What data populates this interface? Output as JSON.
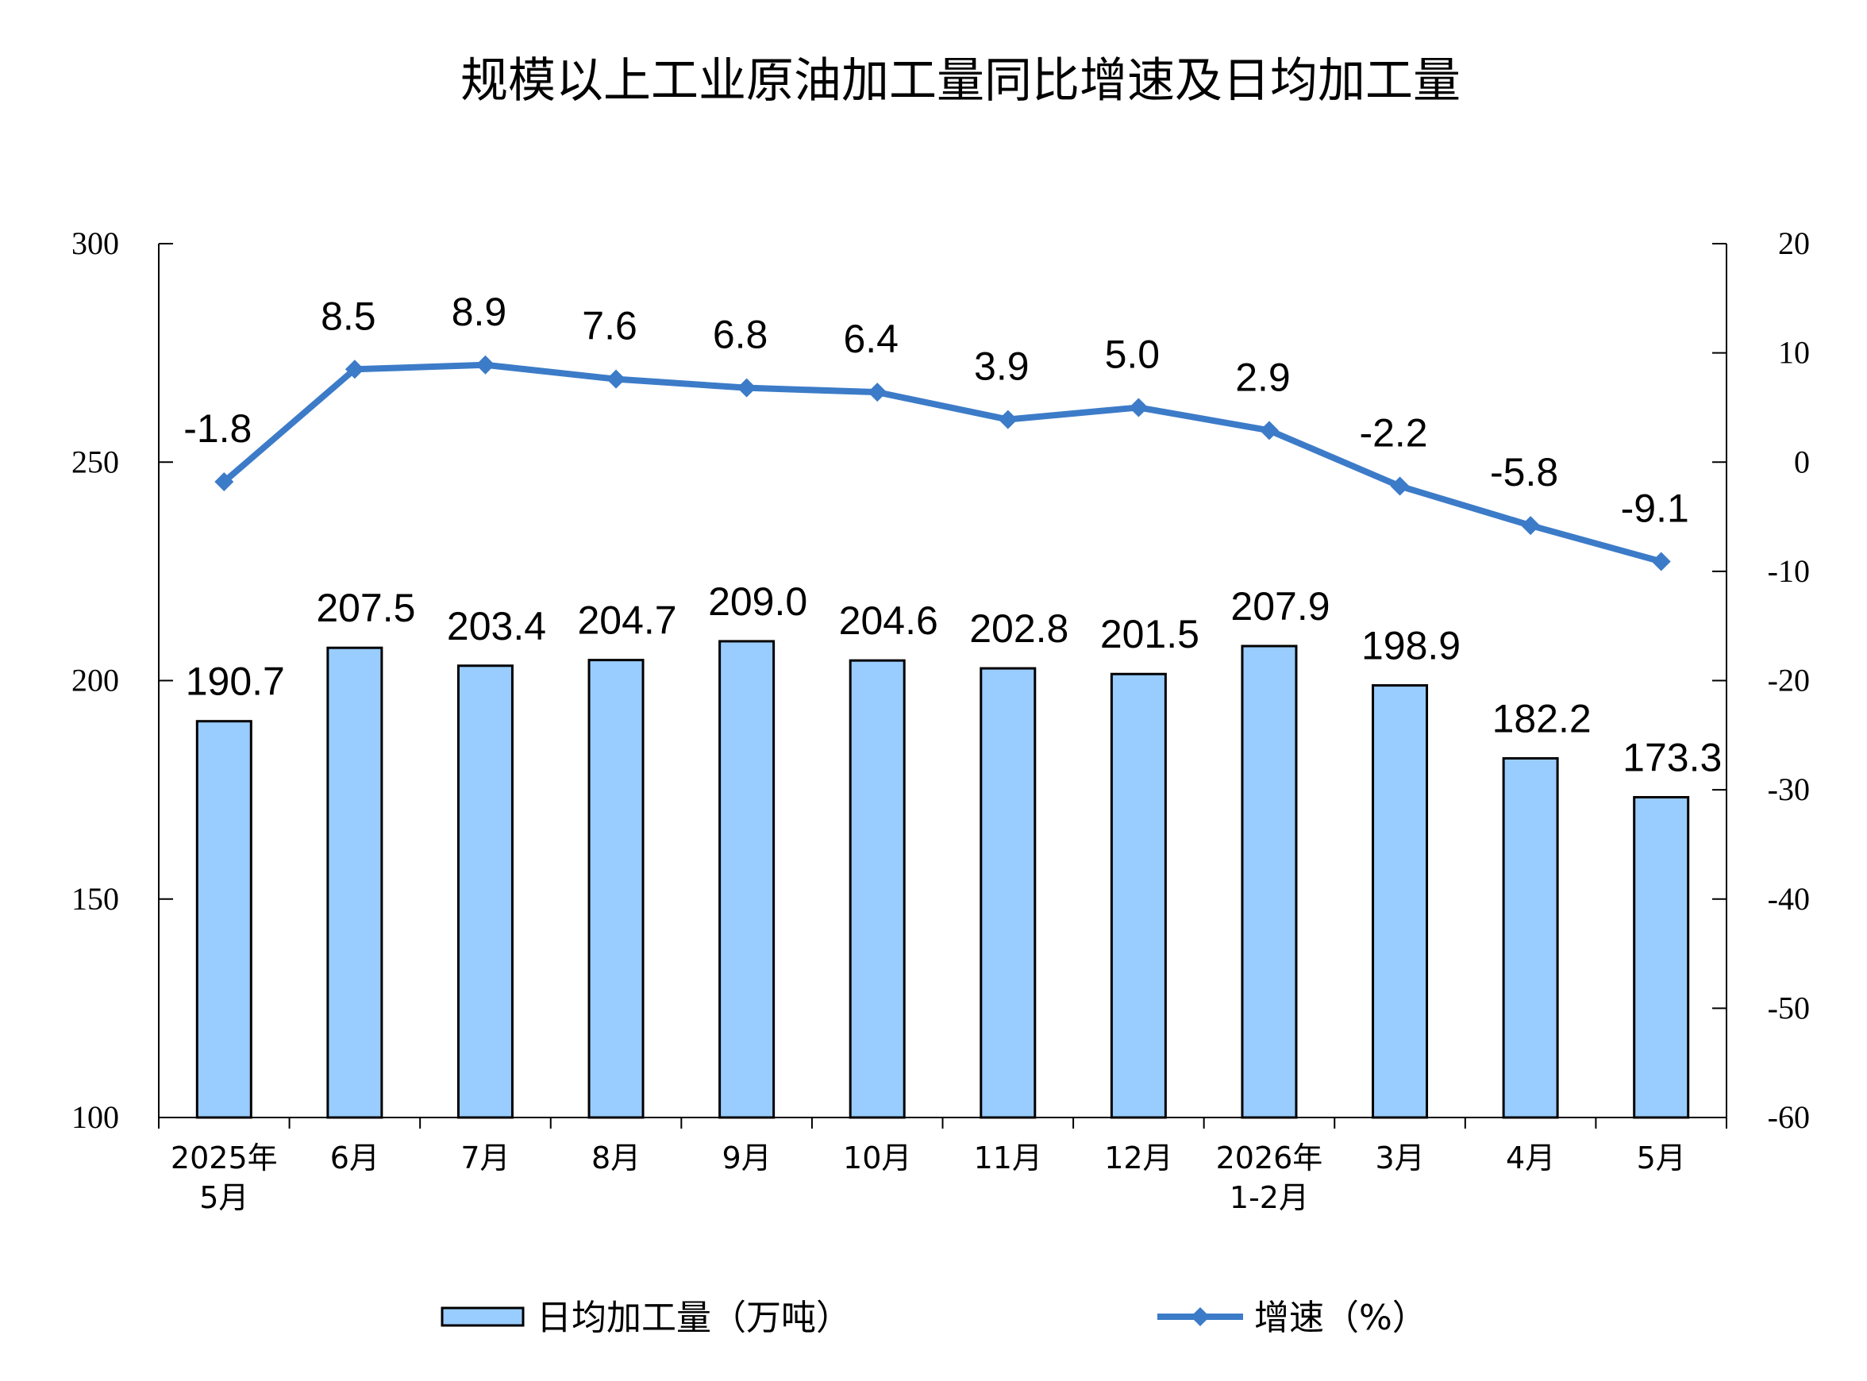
{
  "chart_data": {
    "type": "bar+line",
    "title": "规模以上工业原油加工量同比增速及日均加工量",
    "categories": [
      [
        "2025年",
        "5月"
      ],
      [
        "6月"
      ],
      [
        "7月"
      ],
      [
        "8月"
      ],
      [
        "9月"
      ],
      [
        "10月"
      ],
      [
        "11月"
      ],
      [
        "12月"
      ],
      [
        "2026年",
        "1-2月"
      ],
      [
        "3月"
      ],
      [
        "4月"
      ],
      [
        "5月"
      ]
    ],
    "series": [
      {
        "name": "日均加工量（万吨）",
        "type": "bar",
        "axis": "left",
        "color": "#99CCFF",
        "values": [
          190.7,
          207.5,
          203.4,
          204.7,
          209.0,
          204.6,
          202.8,
          201.5,
          207.9,
          198.9,
          182.2,
          173.3
        ],
        "labels": [
          "190.7",
          "207.5",
          "203.4",
          "204.7",
          "209.0",
          "204.6",
          "202.8",
          "201.5",
          "207.9",
          "198.9",
          "182.2",
          "173.3"
        ]
      },
      {
        "name": "增速（%）",
        "type": "line",
        "axis": "right",
        "color": "#3C7BC8",
        "values": [
          -1.8,
          8.5,
          8.9,
          7.6,
          6.8,
          6.4,
          3.9,
          5.0,
          2.9,
          -2.2,
          -5.8,
          -9.1
        ],
        "labels": [
          "-1.8",
          "8.5",
          "8.9",
          "7.6",
          "6.8",
          "6.4",
          "3.9",
          "5.0",
          "2.9",
          "-2.2",
          "-5.8",
          "-9.1"
        ]
      }
    ],
    "y_left": {
      "min": 100,
      "max": 300,
      "ticks": [
        "100",
        "150",
        "200",
        "250",
        "300"
      ]
    },
    "y_right": {
      "min": -60,
      "max": 20,
      "ticks": [
        "-60",
        "-50",
        "-40",
        "-30",
        "-20",
        "-10",
        "0",
        "10",
        "20"
      ]
    },
    "grid": false,
    "legend": "bottom"
  }
}
